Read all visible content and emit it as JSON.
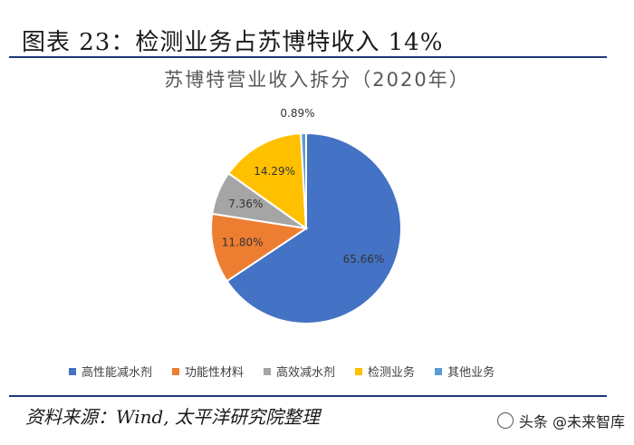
{
  "figure_heading": "图表 23：检测业务占苏博特收入 14%",
  "source_note": "资料来源：Wind, 太平洋研究院整理",
  "watermark": {
    "text": "头条 @未来智库",
    "icon": "watermark-icon"
  },
  "chart_data": {
    "type": "pie",
    "title": "苏博特营业收入拆分（2020年）",
    "start_angle_deg": 0,
    "direction": "clockwise",
    "legend_position": "bottom",
    "slices": [
      {
        "name": "高性能减水剂",
        "value": 65.66,
        "label": "65.66%",
        "color": "#4472C4"
      },
      {
        "name": "功能性材料",
        "value": 11.8,
        "label": "11.80%",
        "color": "#ED7D31"
      },
      {
        "name": "高效减水剂",
        "value": 7.36,
        "label": "7.36%",
        "color": "#A5A5A5"
      },
      {
        "name": "检测业务",
        "value": 14.29,
        "label": "14.29%",
        "color": "#FFC000"
      },
      {
        "name": "其他业务",
        "value": 0.89,
        "label": "0.89%",
        "color": "#5B9BD5"
      }
    ]
  }
}
